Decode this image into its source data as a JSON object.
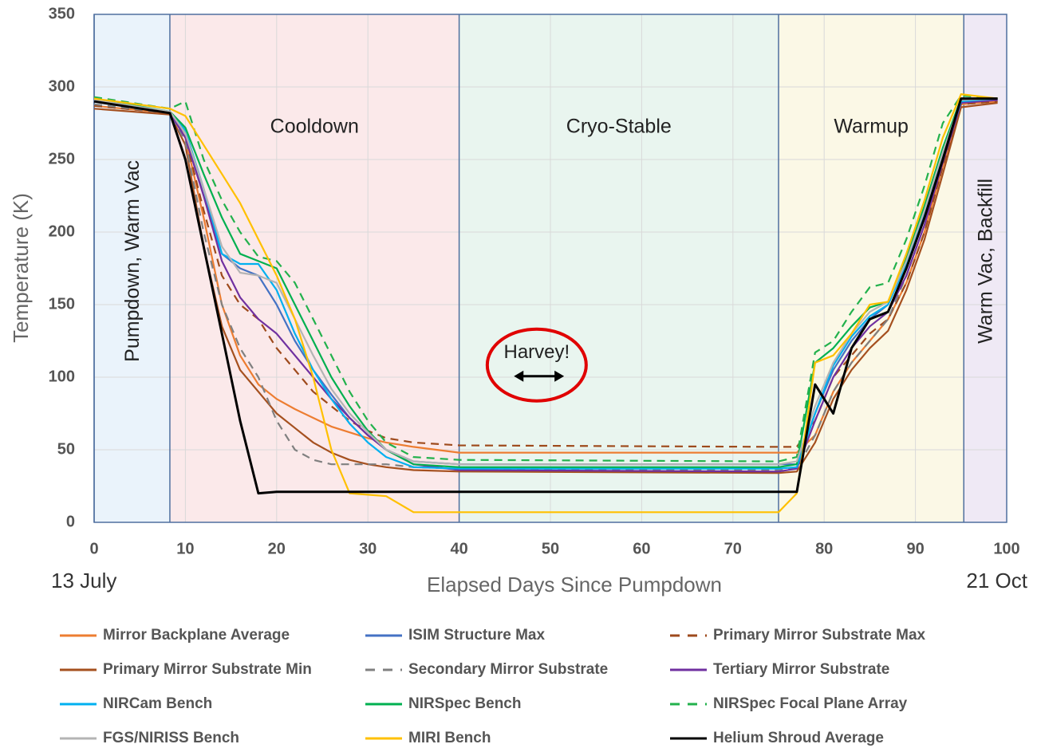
{
  "chart_data": {
    "type": "line",
    "xlabel": "Elapsed Days Since Pumpdown",
    "ylabel": "Temperature (K)",
    "xlim": [
      0,
      100
    ],
    "xticks": [
      0,
      10,
      20,
      30,
      40,
      50,
      60,
      70,
      80,
      90,
      100
    ],
    "ylim": [
      0,
      350
    ],
    "yticks": [
      0,
      50,
      100,
      150,
      200,
      250,
      300,
      350
    ],
    "grid": true,
    "regions": [
      {
        "label": "Pumpdown, Warm Vac",
        "start": 0,
        "end": 8.3,
        "color": "#eaf3fb",
        "vertical": true
      },
      {
        "label": "Cooldown",
        "start": 8.3,
        "end": 40,
        "color": "#fbe9ea"
      },
      {
        "label": "Cryo-Stable",
        "start": 40,
        "end": 75,
        "color": "#e9f5ef"
      },
      {
        "label": "Warmup",
        "start": 75,
        "end": 95.3,
        "color": "#fbf8e6"
      },
      {
        "label": "Warm Vac, Backfill",
        "start": 95.3,
        "end": 100,
        "color": "#efe9f5",
        "vertical": true
      }
    ],
    "date_labels": [
      {
        "x": 0,
        "label": "13 July"
      },
      {
        "x": 100,
        "label": "21 Oct"
      }
    ],
    "annotation": {
      "text": "Harvey!",
      "x": 48.5,
      "y": 115,
      "arrow": [
        46,
        51.5
      ],
      "color": "#e00000"
    },
    "x": [
      0,
      8.3,
      10,
      12,
      14,
      16,
      18,
      20,
      22,
      24,
      26,
      28,
      30,
      32,
      35,
      40,
      75,
      77,
      79,
      81,
      83,
      85,
      87,
      89,
      91,
      93,
      95,
      99
    ],
    "series": [
      {
        "name": "Mirror Backplane Average",
        "color": "#ed7d31",
        "dash": false,
        "values": [
          287,
          282,
          265,
          210,
          150,
          115,
          95,
          85,
          78,
          72,
          66,
          62,
          58,
          55,
          52,
          48,
          48,
          48,
          60,
          90,
          110,
          125,
          140,
          165,
          200,
          245,
          288,
          290
        ]
      },
      {
        "name": "ISIM Structure Max",
        "color": "#4472c4",
        "dash": false,
        "values": [
          290,
          282,
          268,
          225,
          185,
          175,
          170,
          150,
          125,
          105,
          88,
          72,
          60,
          50,
          42,
          40,
          40,
          40,
          75,
          105,
          125,
          140,
          150,
          180,
          215,
          255,
          290,
          292
        ]
      },
      {
        "name": "Primary Mirror Substrate Max",
        "color": "#9e4a1c",
        "dash": true,
        "values": [
          287,
          282,
          265,
          215,
          170,
          150,
          140,
          120,
          105,
          90,
          80,
          70,
          63,
          58,
          55,
          53,
          52,
          52,
          70,
          100,
          115,
          130,
          140,
          165,
          200,
          245,
          288,
          290
        ]
      },
      {
        "name": "Primary Mirror Substrate Min",
        "color": "#a5501f",
        "dash": false,
        "values": [
          285,
          281,
          260,
          190,
          135,
          105,
          90,
          75,
          65,
          55,
          48,
          43,
          40,
          38,
          36,
          35,
          34,
          35,
          55,
          85,
          105,
          120,
          132,
          160,
          195,
          240,
          286,
          289
        ]
      },
      {
        "name": "Secondary Mirror Substrate",
        "color": "#808080",
        "dash": true,
        "values": [
          288,
          282,
          262,
          200,
          150,
          120,
          100,
          70,
          50,
          43,
          40,
          40,
          40,
          40,
          38,
          37,
          36,
          37,
          60,
          90,
          110,
          125,
          140,
          170,
          205,
          250,
          289,
          291
        ]
      },
      {
        "name": "Tertiary Mirror Substrate",
        "color": "#7030a0",
        "dash": false,
        "values": [
          290,
          282,
          265,
          225,
          180,
          155,
          140,
          130,
          115,
          100,
          85,
          72,
          60,
          50,
          40,
          36,
          35,
          37,
          70,
          100,
          120,
          135,
          145,
          170,
          205,
          248,
          289,
          291
        ]
      },
      {
        "name": "NIRCam Bench",
        "color": "#00b0f0",
        "dash": false,
        "values": [
          290,
          283,
          270,
          230,
          185,
          178,
          178,
          160,
          130,
          105,
          85,
          68,
          55,
          45,
          38,
          37,
          37,
          38,
          75,
          108,
          128,
          142,
          150,
          178,
          212,
          252,
          290,
          292
        ]
      },
      {
        "name": "NIRSpec Bench",
        "color": "#00b050",
        "dash": false,
        "values": [
          292,
          283,
          272,
          240,
          210,
          185,
          180,
          175,
          150,
          125,
          100,
          80,
          63,
          50,
          40,
          38,
          38,
          40,
          110,
          120,
          135,
          148,
          152,
          182,
          218,
          258,
          292,
          292
        ]
      },
      {
        "name": "NIRSpec Focal Plane Array",
        "color": "#22b14c",
        "dash": true,
        "values": [
          293,
          285,
          290,
          250,
          222,
          200,
          183,
          180,
          165,
          140,
          115,
          90,
          70,
          55,
          45,
          43,
          42,
          45,
          117,
          125,
          145,
          162,
          165,
          195,
          232,
          275,
          294,
          292
        ]
      },
      {
        "name": "FGS/NIRISS Bench",
        "color": "#b4b4b4",
        "dash": false,
        "values": [
          291,
          283,
          268,
          230,
          190,
          172,
          170,
          165,
          140,
          115,
          92,
          75,
          62,
          50,
          42,
          40,
          40,
          42,
          80,
          110,
          130,
          145,
          152,
          180,
          215,
          255,
          291,
          292
        ]
      },
      {
        "name": "MIRI Bench",
        "color": "#ffc000",
        "dash": false,
        "values": [
          292,
          285,
          280,
          260,
          240,
          220,
          195,
          170,
          140,
          100,
          50,
          20,
          19,
          18,
          7,
          7,
          7,
          20,
          110,
          115,
          130,
          150,
          152,
          185,
          222,
          265,
          295,
          292
        ]
      },
      {
        "name": "Helium Shroud Average",
        "color": "#000000",
        "dash": false,
        "values": [
          290,
          282,
          250,
          190,
          130,
          70,
          20,
          21,
          21,
          21,
          21,
          21,
          21,
          21,
          21,
          21,
          21,
          21,
          95,
          75,
          120,
          140,
          145,
          175,
          210,
          250,
          292,
          292
        ]
      }
    ]
  }
}
